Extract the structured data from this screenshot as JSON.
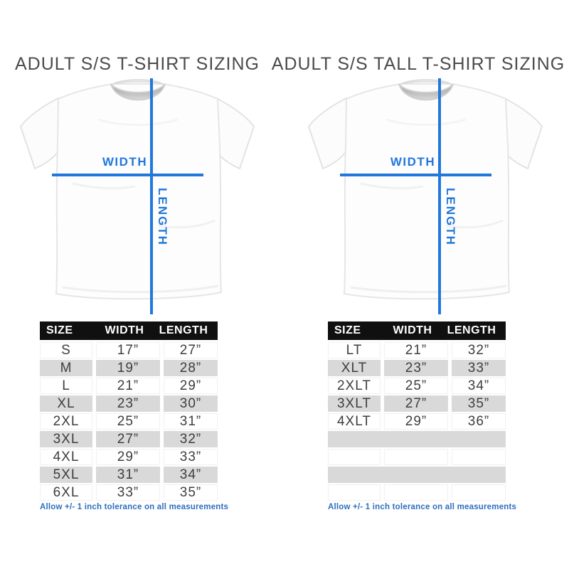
{
  "colors": {
    "measure_blue": "#2277dd",
    "note_blue": "#2d6fc0",
    "table_header_bg": "#101010",
    "table_header_text": "#ffffff",
    "row_alt_gray": "#d9d9d9",
    "cell_text": "#3e3e3e",
    "title_gray": "#4b4b4b"
  },
  "panels": [
    {
      "title": "ADULT S/S T-SHIRT SIZING",
      "diagram": {
        "width_label": "WIDTH",
        "length_label": "LENGTH"
      },
      "table": {
        "headers": [
          "SIZE",
          "WIDTH",
          "LENGTH"
        ],
        "rows": [
          [
            "S",
            "17”",
            "27”"
          ],
          [
            "M",
            "19”",
            "28”"
          ],
          [
            "L",
            "21”",
            "29”"
          ],
          [
            "XL",
            "23”",
            "30”"
          ],
          [
            "2XL",
            "25”",
            "31”"
          ],
          [
            "3XL",
            "27”",
            "32”"
          ],
          [
            "4XL",
            "29”",
            "33”"
          ],
          [
            "5XL",
            "31”",
            "34”"
          ],
          [
            "6XL",
            "33”",
            "35”"
          ]
        ]
      },
      "tolerance_note": "Allow +/- 1 inch tolerance on all measurements"
    },
    {
      "title": "ADULT S/S TALL T-SHIRT SIZING",
      "diagram": {
        "width_label": "WIDTH",
        "length_label": "LENGTH"
      },
      "table": {
        "headers": [
          "SIZE",
          "WIDTH",
          "LENGTH"
        ],
        "rows": [
          [
            "LT",
            "21”",
            "32”"
          ],
          [
            "XLT",
            "23”",
            "33”"
          ],
          [
            "2XLT",
            "25”",
            "34”"
          ],
          [
            "3XLT",
            "27”",
            "35”"
          ],
          [
            "4XLT",
            "29”",
            "36”"
          ],
          [
            "",
            "",
            ""
          ],
          [
            "",
            "",
            ""
          ],
          [
            "",
            "",
            ""
          ],
          [
            "",
            "",
            ""
          ]
        ]
      },
      "tolerance_note": "Allow +/- 1 inch tolerance on all measurements"
    }
  ]
}
